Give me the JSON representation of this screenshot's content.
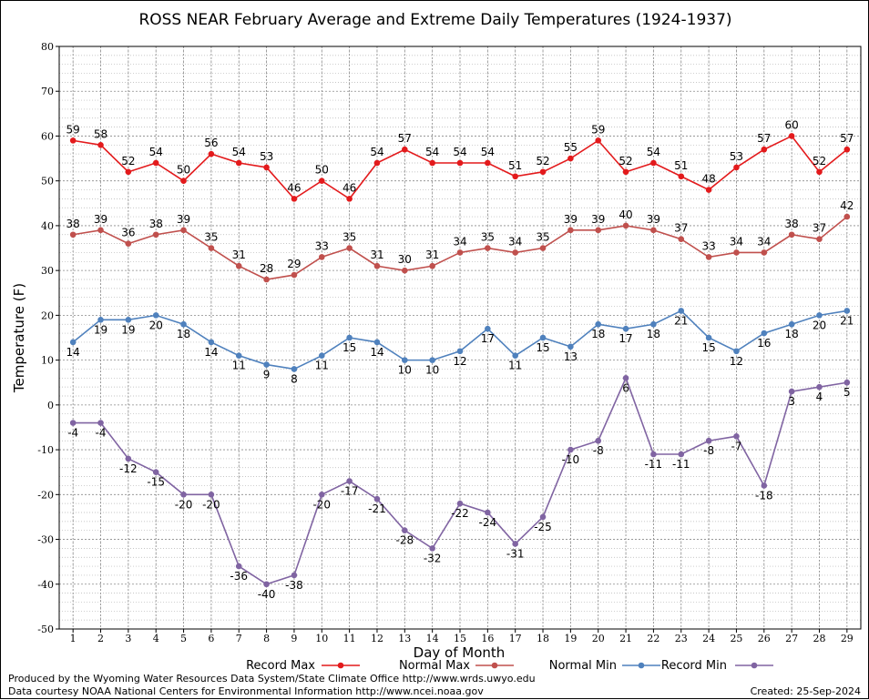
{
  "chart_data": {
    "type": "line",
    "title": "ROSS NEAR February Average and Extreme Daily Temperatures (1924-1937)",
    "xlabel": "Day of Month",
    "ylabel": "Temperature (F)",
    "ylim": [
      -50,
      80
    ],
    "y_ticks": [
      80,
      70,
      60,
      50,
      40,
      30,
      20,
      10,
      0,
      -10,
      -20,
      -30,
      -40,
      -50
    ],
    "categories": [
      1,
      2,
      3,
      4,
      5,
      6,
      7,
      8,
      9,
      10,
      11,
      12,
      13,
      14,
      15,
      16,
      17,
      18,
      19,
      20,
      21,
      22,
      23,
      24,
      25,
      26,
      27,
      28,
      29
    ],
    "grid": true,
    "legend_placement": "bottom",
    "series": [
      {
        "name": "Record Max",
        "color": "#e31a1c",
        "label_position": "above",
        "values": [
          59,
          58,
          52,
          54,
          50,
          56,
          54,
          53,
          46,
          50,
          46,
          54,
          57,
          54,
          54,
          54,
          51,
          52,
          55,
          59,
          52,
          54,
          51,
          48,
          53,
          57,
          60,
          52,
          57
        ]
      },
      {
        "name": "Normal Max",
        "color": "#c0504d",
        "label_position": "above",
        "values": [
          38,
          39,
          36,
          38,
          39,
          35,
          31,
          28,
          29,
          33,
          35,
          31,
          30,
          31,
          34,
          35,
          34,
          35,
          39,
          39,
          40,
          39,
          37,
          33,
          34,
          34,
          38,
          37,
          42
        ]
      },
      {
        "name": "Normal Min",
        "color": "#4f81bd",
        "label_position": "below",
        "values": [
          14,
          19,
          19,
          20,
          18,
          14,
          11,
          9,
          8,
          11,
          15,
          14,
          10,
          10,
          12,
          17,
          11,
          15,
          13,
          18,
          17,
          18,
          21,
          15,
          12,
          16,
          18,
          20,
          21
        ]
      },
      {
        "name": "Record Min",
        "color": "#8064a2",
        "label_position": "below",
        "values": [
          -4,
          -4,
          -12,
          -15,
          -20,
          -20,
          -36,
          -40,
          -38,
          -20,
          -17,
          -21,
          -28,
          -32,
          -22,
          -24,
          -31,
          -25,
          -10,
          -8,
          6,
          -11,
          -11,
          -8,
          -7,
          -18,
          3,
          4,
          5
        ]
      }
    ]
  },
  "footer": {
    "produced_by": "Produced by the Wyoming Water Resources Data System/State Climate Office http://www.wrds.uwyo.edu",
    "courtesy": "Data courtesy NOAA National Centers for Environmental Information http://www.ncei.noaa.gov",
    "created": "Created:  25-Sep-2024"
  }
}
